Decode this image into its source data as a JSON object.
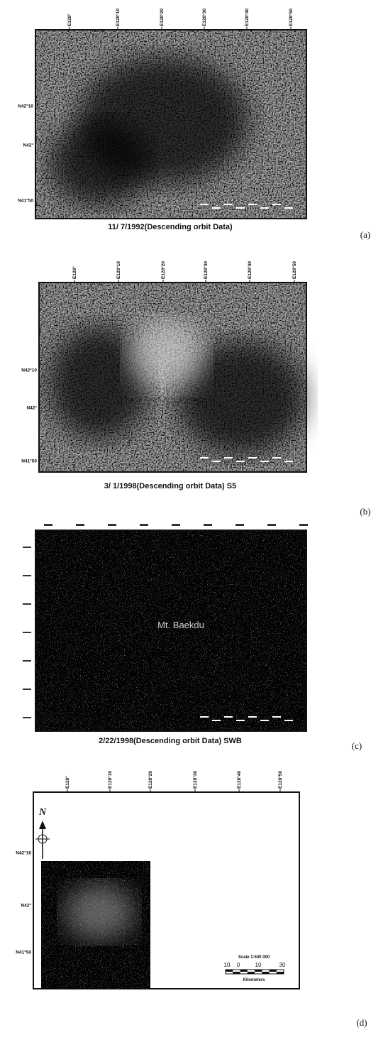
{
  "panels": [
    {
      "label": "(a)",
      "caption": "11/ 7/1992(Descending orbit Data)",
      "top_labels": [
        "E128°",
        "E128°10",
        "E128°20",
        "E128°30",
        "E128°40",
        "E128°50"
      ],
      "left_labels": [
        "N42°10",
        "N42°",
        "N41°50"
      ]
    },
    {
      "label": "(b)",
      "caption": "3/ 1/1998(Descending orbit Data) S5",
      "top_labels": [
        "E128°",
        "E128°10",
        "E128°20",
        "E128°30",
        "E128°40",
        "E128°50"
      ],
      "left_labels": [
        "N42°10",
        "N42°",
        "N41°50"
      ]
    },
    {
      "label": "(c)",
      "caption": "2/22/1998(Descending orbit Data) SWB",
      "annotation": "Mt. Baekdu"
    },
    {
      "label": "(d)",
      "top_labels": [
        "E128°",
        "E128°10",
        "E128°20",
        "E128°30",
        "E128°40",
        "E128°50"
      ],
      "left_labels": [
        "N42°10",
        "N42°",
        "N41°50"
      ],
      "north_label": "N",
      "scale": {
        "title": "Scale 1:500 000",
        "ticks": [
          "10",
          "0",
          "10",
          "30"
        ],
        "unit": "Kilometers"
      }
    }
  ]
}
